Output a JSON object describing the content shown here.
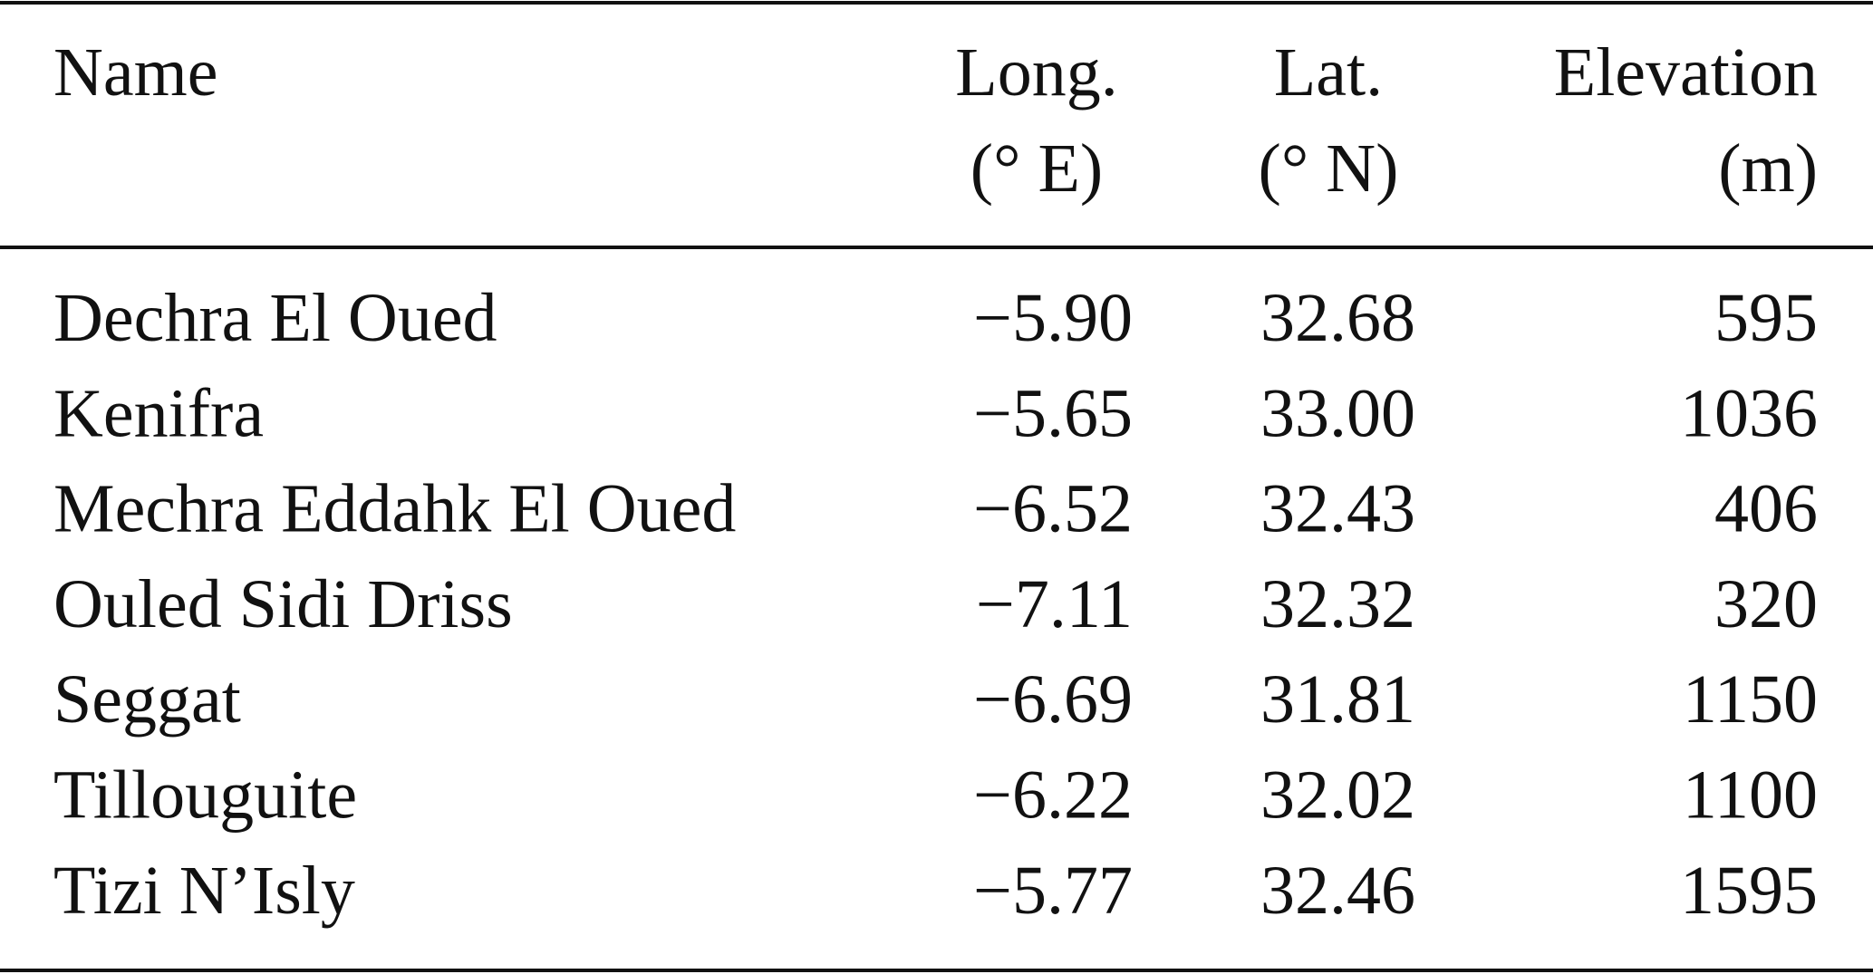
{
  "table": {
    "header": [
      [
        "Name"
      ],
      [
        "Long.",
        "(° E)"
      ],
      [
        "Lat.",
        "(° N)"
      ],
      [
        "Elevation",
        "(m)"
      ]
    ],
    "rows": [
      [
        "Dechra El Oued",
        "−5.90",
        "32.68",
        "595"
      ],
      [
        "Kenifra",
        "−5.65",
        "33.00",
        "1036"
      ],
      [
        "Mechra Eddahk El Oued",
        "−6.52",
        "32.43",
        "406"
      ],
      [
        "Ouled Sidi Driss",
        "−7.11",
        "32.32",
        "320"
      ],
      [
        "Seggat",
        "−6.69",
        "31.81",
        "1150"
      ],
      [
        "Tillouguite",
        "−6.22",
        "32.02",
        "1100"
      ],
      [
        "Tizi N’Isly",
        "−5.77",
        "32.46",
        "1595"
      ]
    ]
  }
}
